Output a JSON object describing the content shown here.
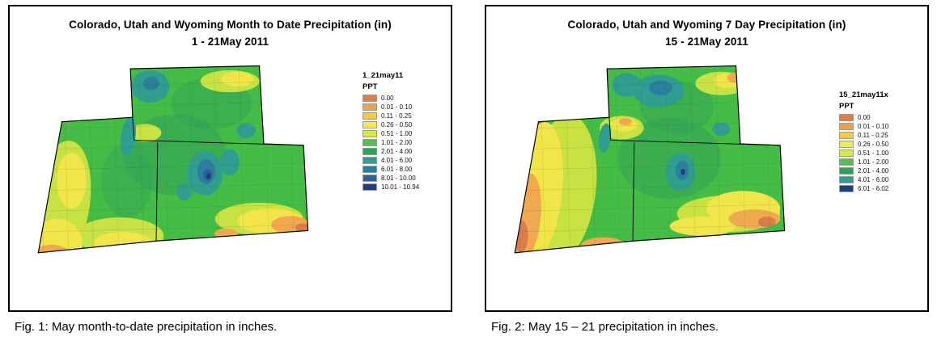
{
  "figures": [
    {
      "title_line1": "Colorado, Utah and Wyoming Month to Date Precipitation (in)",
      "title_line2": "1 - 21May 2011",
      "legend": {
        "name": "1_21may11",
        "unit_label": "PPT",
        "entries": [
          {
            "label": "0.00",
            "color": "#D9804D"
          },
          {
            "label": "0.01 - 0.10",
            "color": "#ECA14F"
          },
          {
            "label": "0.11 - 0.25",
            "color": "#F4C84E"
          },
          {
            "label": "0.26 - 0.50",
            "color": "#EFE954"
          },
          {
            "label": "0.51 - 1.00",
            "color": "#D7E948"
          },
          {
            "label": "1.01 - 2.00",
            "color": "#52C04A"
          },
          {
            "label": "2.01 - 4.00",
            "color": "#33A05A"
          },
          {
            "label": "4.01 - 6.00",
            "color": "#2F9D8F"
          },
          {
            "label": "6.01 - 8.00",
            "color": "#2B7E9C"
          },
          {
            "label": "8.01 - 10.00",
            "color": "#2C5F9E"
          },
          {
            "label": "10.01 - 10.94",
            "color": "#1F3D7A"
          }
        ]
      },
      "caption": "Fig. 1: May month-to-date precipitation in inches."
    },
    {
      "title_line1": "Colorado, Utah and Wyoming 7 Day Precipitation (in)",
      "title_line2": "15 - 21May 2011",
      "legend": {
        "name": "15_21may11x",
        "unit_label": "PPT",
        "entries": [
          {
            "label": "0.00",
            "color": "#D9804D"
          },
          {
            "label": "0.01 - 0.10",
            "color": "#ECA14F"
          },
          {
            "label": "0.11 - 0.25",
            "color": "#F4C84E"
          },
          {
            "label": "0.26 - 0.50",
            "color": "#EFE954"
          },
          {
            "label": "0.51 - 1.00",
            "color": "#D7E948"
          },
          {
            "label": "1.01 - 2.00",
            "color": "#52C04A"
          },
          {
            "label": "2.01 - 4.00",
            "color": "#33A05A"
          },
          {
            "label": "4.01 - 6.00",
            "color": "#2F9D8F"
          },
          {
            "label": "6.01 - 6.02",
            "color": "#1F3D7A"
          }
        ]
      },
      "caption": "Fig. 2:  May 15 – 21 precipitation in inches."
    }
  ]
}
